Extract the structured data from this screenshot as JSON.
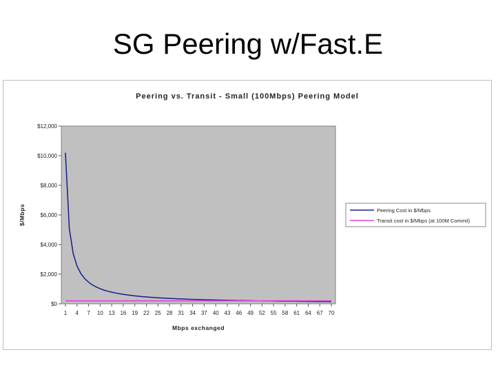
{
  "slide": {
    "title": "SG Peering w/Fast.E"
  },
  "colors": {
    "plot_bg": "#c0c0c0",
    "peering": "#1a1a8c",
    "transit": "#e040e0"
  },
  "chart_data": {
    "type": "line",
    "title": "Peering vs. Transit - Small (100Mbps) Peering Model",
    "xlabel": "Mbps exchanged",
    "ylabel": "$/Mbps",
    "ylim": [
      0,
      12000
    ],
    "yticks": [
      "$0",
      "$2,000",
      "$4,000",
      "$6,000",
      "$8,000",
      "$10,000",
      "$12,000"
    ],
    "x_tick_labels": [
      "1",
      "4",
      "7",
      "10",
      "13",
      "16",
      "19",
      "22",
      "25",
      "28",
      "31",
      "34",
      "37",
      "40",
      "43",
      "46",
      "49",
      "52",
      "55",
      "58",
      "61",
      "64",
      "67",
      "70"
    ],
    "grid": false,
    "legend_position": "right",
    "x": [
      1,
      2,
      3,
      4,
      5,
      6,
      7,
      8,
      9,
      10,
      11,
      12,
      13,
      14,
      15,
      16,
      17,
      18,
      19,
      20,
      21,
      22,
      23,
      24,
      25,
      26,
      27,
      28,
      29,
      30,
      31,
      32,
      33,
      34,
      35,
      36,
      37,
      38,
      39,
      40,
      41,
      42,
      43,
      44,
      45,
      46,
      47,
      48,
      49,
      50,
      51,
      52,
      53,
      54,
      55,
      56,
      57,
      58,
      59,
      60,
      61,
      62,
      63,
      64,
      65,
      66,
      67,
      68,
      69,
      70
    ],
    "series": [
      {
        "name": "Peering Cost in $/Mbps",
        "values": [
          10200,
          5100,
          3400,
          2550,
          2040,
          1700,
          1457,
          1275,
          1133,
          1020,
          927,
          850,
          785,
          729,
          680,
          638,
          600,
          567,
          537,
          510,
          486,
          464,
          443,
          425,
          408,
          392,
          378,
          364,
          352,
          340,
          329,
          319,
          309,
          300,
          291,
          283,
          276,
          268,
          262,
          255,
          249,
          243,
          237,
          232,
          227,
          222,
          217,
          213,
          208,
          204,
          200,
          196,
          192,
          189,
          185,
          182,
          179,
          176,
          173,
          170,
          167,
          165,
          162,
          159,
          157,
          155,
          152,
          150,
          148,
          146
        ]
      },
      {
        "name": "Transit cost in $/Mbps (at 100M Commit)",
        "values": [
          200,
          200,
          200,
          200,
          200,
          200,
          200,
          200,
          200,
          200,
          200,
          200,
          200,
          200,
          200,
          200,
          200,
          200,
          200,
          200,
          200,
          200,
          200,
          200,
          200,
          200,
          200,
          200,
          200,
          200,
          200,
          200,
          200,
          200,
          200,
          200,
          200,
          200,
          200,
          200,
          200,
          200,
          200,
          200,
          200,
          200,
          200,
          200,
          200,
          200,
          200,
          200,
          200,
          200,
          200,
          200,
          200,
          200,
          200,
          200,
          200,
          200,
          200,
          200,
          200,
          200,
          200,
          200,
          200,
          200
        ]
      }
    ]
  }
}
